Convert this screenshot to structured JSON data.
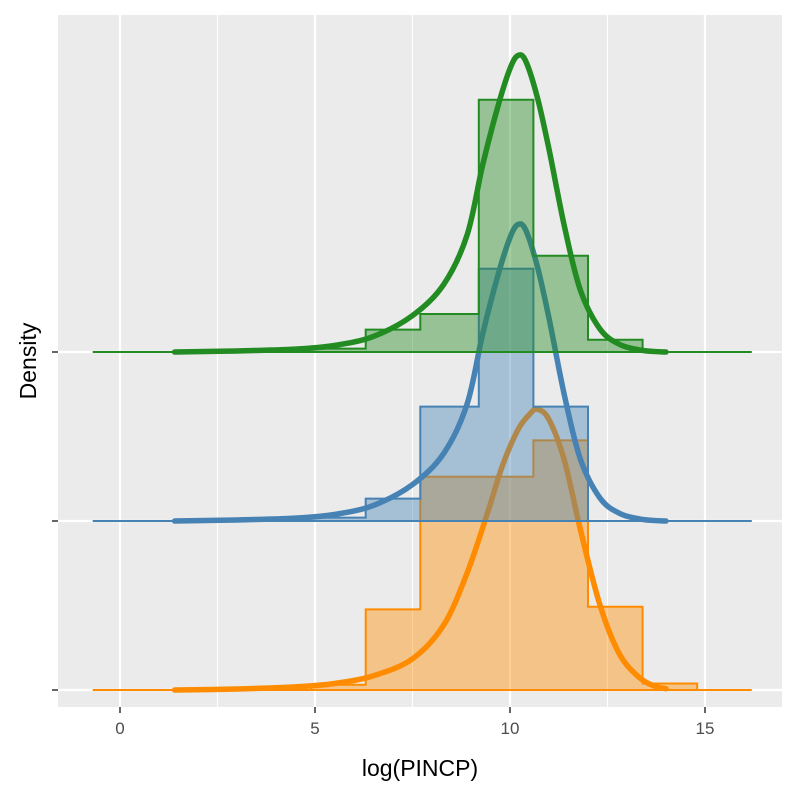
{
  "chart_data": {
    "type": "ridgeline",
    "xlabel": "log(PINCP)",
    "ylabel": "Density",
    "xlim": [
      -1.5,
      16.8
    ],
    "x_ticks": [
      0,
      5,
      10,
      15
    ],
    "x_tick_labels": [
      "0",
      "5",
      "10",
      "15"
    ],
    "grid": true,
    "legend": "none",
    "baseline_range": [
      -0.7,
      16.2
    ],
    "bin_edges": [
      3.5,
      4.9,
      6.3,
      7.7,
      9.2,
      10.6,
      12.0,
      13.4,
      14.8
    ],
    "density_range": [
      1.4,
      14.0
    ],
    "series": [
      {
        "color": "#228B22",
        "hist_counts": [
          0.01,
          0.013,
          0.086,
          0.146,
          0.97,
          0.37,
          0.047,
          0.0
        ],
        "density": [
          [
            1.4,
            0.0
          ],
          [
            3.0,
            0.004
          ],
          [
            4.5,
            0.011
          ],
          [
            5.5,
            0.025
          ],
          [
            6.5,
            0.06
          ],
          [
            7.5,
            0.14
          ],
          [
            8.3,
            0.26
          ],
          [
            8.9,
            0.45
          ],
          [
            9.3,
            0.72
          ],
          [
            9.7,
            0.95
          ],
          [
            10.0,
            1.09
          ],
          [
            10.2,
            1.14
          ],
          [
            10.4,
            1.12
          ],
          [
            10.7,
            0.98
          ],
          [
            11.0,
            0.78
          ],
          [
            11.4,
            0.48
          ],
          [
            11.8,
            0.24
          ],
          [
            12.3,
            0.09
          ],
          [
            12.8,
            0.03
          ],
          [
            13.4,
            0.006
          ],
          [
            14.0,
            0.0
          ]
        ]
      },
      {
        "color": "#4682B4",
        "hist_counts": [
          0.01,
          0.013,
          0.086,
          0.44,
          0.97,
          0.44,
          0.0,
          0.0
        ],
        "density": [
          [
            1.4,
            0.0
          ],
          [
            3.0,
            0.004
          ],
          [
            4.5,
            0.011
          ],
          [
            5.5,
            0.025
          ],
          [
            6.5,
            0.06
          ],
          [
            7.5,
            0.14
          ],
          [
            8.3,
            0.26
          ],
          [
            8.9,
            0.45
          ],
          [
            9.3,
            0.72
          ],
          [
            9.7,
            0.95
          ],
          [
            10.0,
            1.09
          ],
          [
            10.2,
            1.14
          ],
          [
            10.4,
            1.12
          ],
          [
            10.7,
            0.98
          ],
          [
            11.0,
            0.78
          ],
          [
            11.4,
            0.48
          ],
          [
            11.8,
            0.24
          ],
          [
            12.3,
            0.09
          ],
          [
            12.8,
            0.03
          ],
          [
            13.4,
            0.006
          ],
          [
            14.0,
            0.0
          ]
        ]
      },
      {
        "color": "#FF8C00",
        "hist_counts": [
          0.0,
          0.02,
          0.31,
          0.82,
          0.82,
          0.96,
          0.32,
          0.025
        ],
        "density": [
          [
            1.4,
            0.0
          ],
          [
            3.0,
            0.004
          ],
          [
            4.5,
            0.012
          ],
          [
            5.5,
            0.025
          ],
          [
            6.5,
            0.055
          ],
          [
            7.5,
            0.12
          ],
          [
            8.3,
            0.25
          ],
          [
            8.9,
            0.45
          ],
          [
            9.4,
            0.67
          ],
          [
            9.8,
            0.86
          ],
          [
            10.2,
            1.0
          ],
          [
            10.5,
            1.06
          ],
          [
            10.7,
            1.08
          ],
          [
            11.0,
            1.04
          ],
          [
            11.4,
            0.88
          ],
          [
            11.8,
            0.62
          ],
          [
            12.3,
            0.33
          ],
          [
            12.8,
            0.14
          ],
          [
            13.3,
            0.05
          ],
          [
            13.7,
            0.015
          ],
          [
            14.0,
            0.005
          ]
        ]
      }
    ]
  }
}
